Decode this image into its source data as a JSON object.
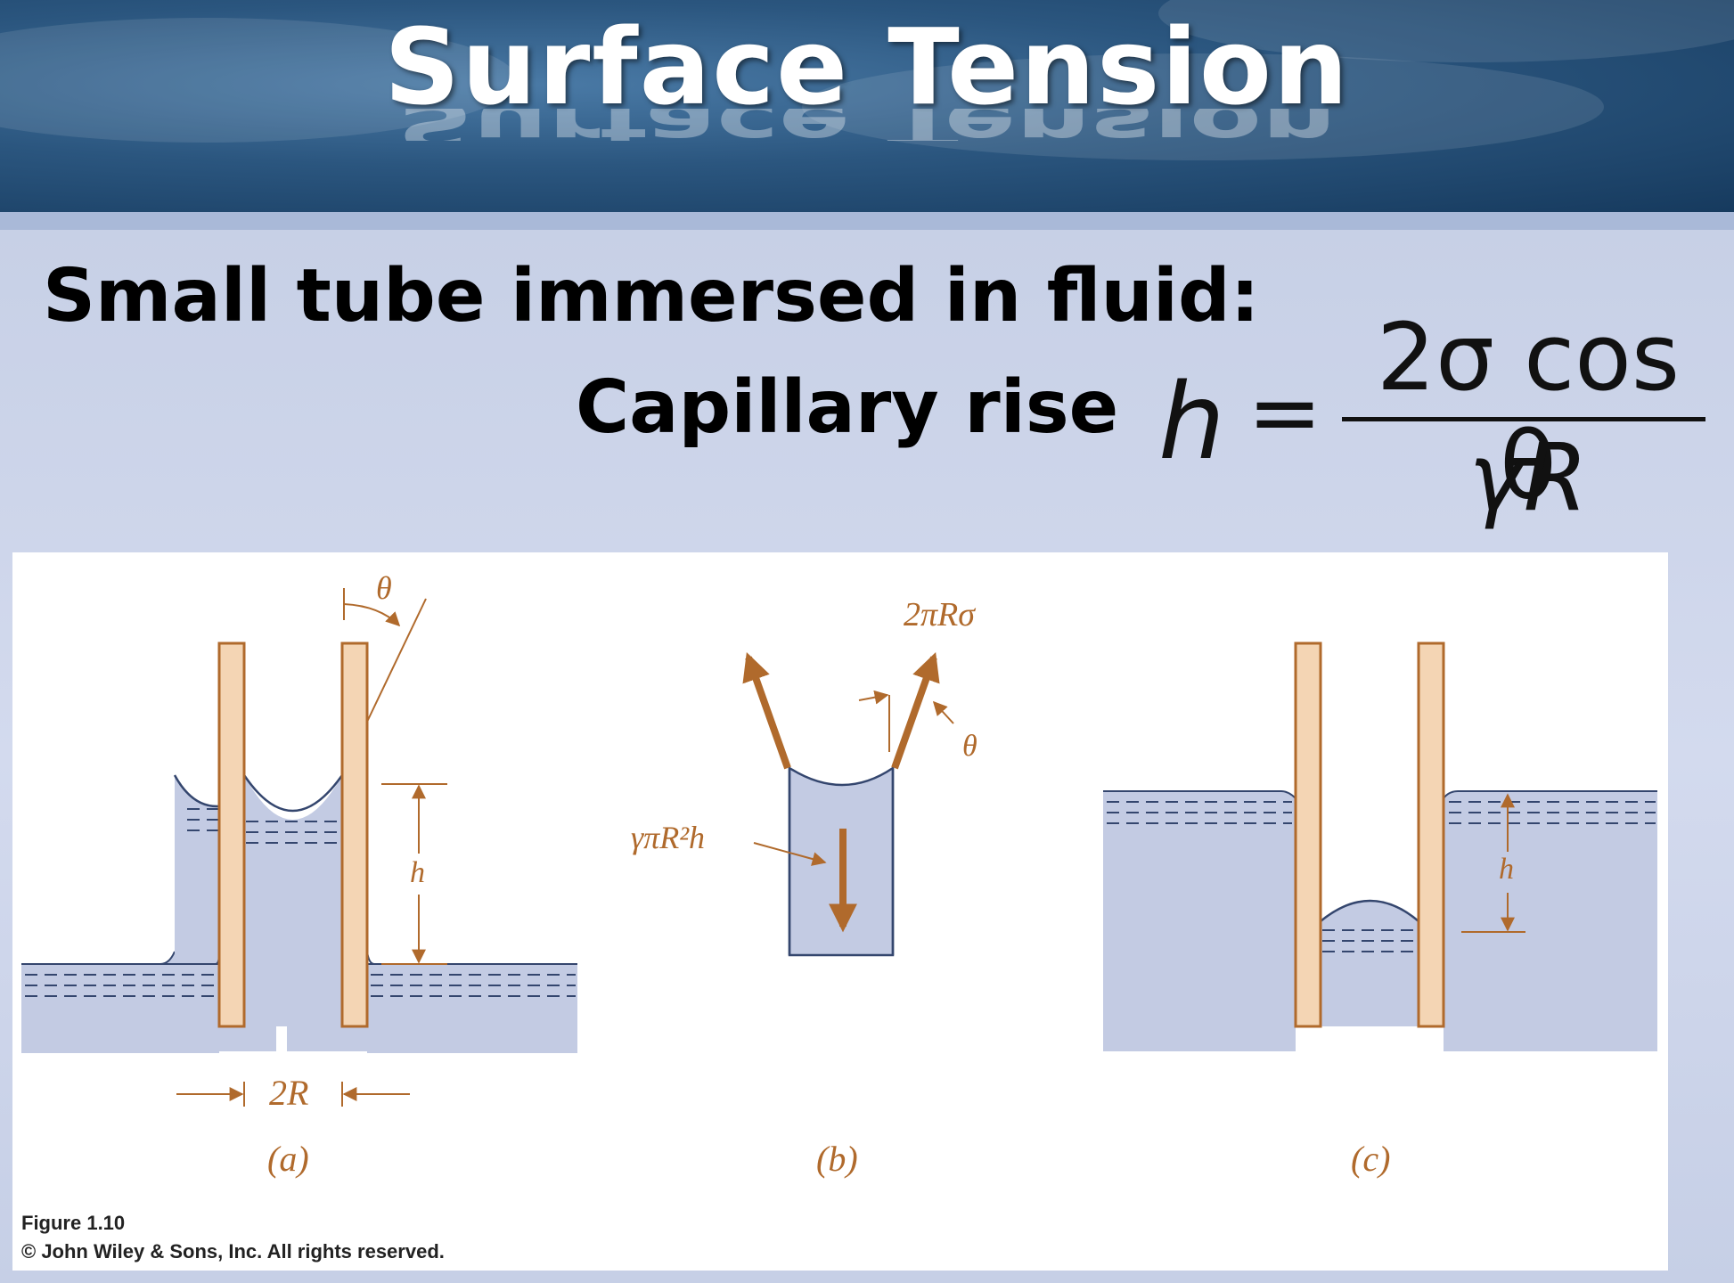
{
  "slide": {
    "title": "Surface Tension",
    "line1": "Small tube immersed in fluid:",
    "line2": "Capillary rise"
  },
  "formula": {
    "lhs": "h",
    "equals": "=",
    "numerator": "2σ cos θ",
    "denominator": "γR"
  },
  "figure": {
    "caption": "Figure 1.10",
    "credit": "© John Wiley & Sons, Inc. All rights reserved.",
    "panels": [
      {
        "id": "a",
        "label": "(a)",
        "angle_label": "θ",
        "height_label": "h",
        "width_label": "2R"
      },
      {
        "id": "b",
        "label": "(b)",
        "force_top_label": "2πRσ",
        "angle_label": "θ",
        "weight_label": "γπR²h"
      },
      {
        "id": "c",
        "label": "(c)",
        "height_label": "h"
      }
    ]
  },
  "colors": {
    "tube_wall": "#f4d5b4",
    "tube_stroke": "#b06a2c",
    "fluid": "#c3cbe3",
    "fluid_stroke": "#34466e",
    "label": "#b06a2c"
  }
}
